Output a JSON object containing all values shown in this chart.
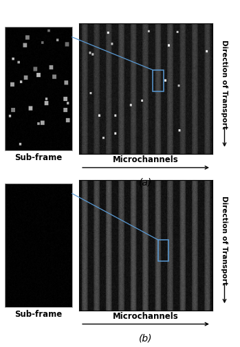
{
  "fig_width": 3.49,
  "fig_height": 5.06,
  "dpi": 100,
  "bg_color": "#ffffff",
  "panel_a": {
    "subframe_label": "Sub-frame",
    "subframe_label_fontsize": 8.5,
    "main_label": "(a)",
    "main_label_fontsize": 10,
    "xlabel": "Microchannels",
    "xlabel_fontsize": 8.5,
    "ylabel": "Direction of Transport",
    "ylabel_fontsize": 7.5
  },
  "panel_b": {
    "subframe_label": "Sub-frame",
    "subframe_label_fontsize": 8.5,
    "main_label": "(b)",
    "main_label_fontsize": 10,
    "xlabel": "Microchannels",
    "xlabel_fontsize": 8.5,
    "ylabel": "Direction of Transport",
    "ylabel_fontsize": 7.5
  },
  "connector_color": "#5b9bd5",
  "box_color": "#5b9bd5",
  "n_channels": 11,
  "channel_bg_dark": 18,
  "channel_bg_light": 22,
  "channel_stripe_brightness_a": 42,
  "channel_stripe_brightness_b": 62,
  "spot_intensity_a": 220,
  "spot_size_a": 1,
  "n_spots_a": 18,
  "subframe_spot_intensity": 200,
  "subframe_n_spots": 28
}
